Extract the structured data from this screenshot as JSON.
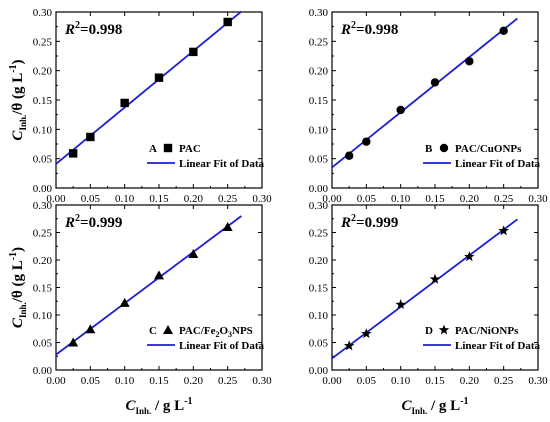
{
  "chart_data": [
    {
      "type": "scatter",
      "panel": "A",
      "r2_prefix": "R",
      "r2_sup": "2",
      "r2_value": "=0.998",
      "marker": "square",
      "legend": {
        "panel_label": "A",
        "series_name": "PAC",
        "fit_name": "Linear Fit of Data",
        "placement": "bottom-right"
      },
      "x": [
        0.025,
        0.05,
        0.1,
        0.15,
        0.2,
        0.25
      ],
      "y": [
        0.059,
        0.087,
        0.145,
        0.188,
        0.232,
        0.283
      ],
      "fit": {
        "x": [
          0.0,
          0.27
        ],
        "y": [
          0.041,
          0.301
        ]
      },
      "xlim": [
        0.0,
        0.3
      ],
      "ylim": [
        0.0,
        0.3
      ],
      "xticks": [
        "0.00",
        "0.05",
        "0.10",
        "0.15",
        "0.20",
        "0.25",
        "0.30"
      ],
      "yticks": [
        "0.00",
        "0.05",
        "0.10",
        "0.15",
        "0.20",
        "0.25",
        "0.30"
      ]
    },
    {
      "type": "scatter",
      "panel": "B",
      "r2_prefix": "R",
      "r2_sup": "2",
      "r2_value": "=0.998",
      "marker": "circle",
      "legend": {
        "panel_label": "B",
        "series_name": "PAC/CuONPs",
        "fit_name": "Linear Fit of Data",
        "placement": "bottom-right"
      },
      "x": [
        0.025,
        0.05,
        0.1,
        0.15,
        0.2,
        0.25
      ],
      "y": [
        0.055,
        0.079,
        0.133,
        0.18,
        0.216,
        0.268
      ],
      "fit": {
        "x": [
          0.0,
          0.27
        ],
        "y": [
          0.035,
          0.289
        ]
      },
      "xlim": [
        0.0,
        0.3
      ],
      "ylim": [
        0.0,
        0.3
      ],
      "xticks": [
        "0.00",
        "0.05",
        "0.10",
        "0.15",
        "0.20",
        "0.25",
        "0.30"
      ],
      "yticks": [
        "0.00",
        "0.05",
        "0.10",
        "0.15",
        "0.20",
        "0.25",
        "0.30"
      ]
    },
    {
      "type": "scatter",
      "panel": "C",
      "r2_prefix": "R",
      "r2_sup": "2",
      "r2_value": "=0.999",
      "marker": "triangle",
      "legend": {
        "panel_label": "C",
        "series_name_main": "PAC/Fe",
        "series_sub1": "2",
        "series_mid": "O",
        "series_sub2": "3",
        "series_end": "NPS",
        "fit_name": "Linear Fit of Data",
        "placement": "bottom-right"
      },
      "x": [
        0.025,
        0.05,
        0.1,
        0.15,
        0.2,
        0.25
      ],
      "y": [
        0.05,
        0.074,
        0.122,
        0.172,
        0.211,
        0.26
      ],
      "fit": {
        "x": [
          0.0,
          0.27
        ],
        "y": [
          0.028,
          0.28
        ]
      },
      "xlim": [
        0.0,
        0.3
      ],
      "ylim": [
        0.0,
        0.3
      ],
      "xticks": [
        "0.00",
        "0.05",
        "0.10",
        "0.15",
        "0.20",
        "0.25",
        "0.30"
      ],
      "yticks": [
        "0.00",
        "0.05",
        "0.10",
        "0.15",
        "0.20",
        "0.25",
        "0.30"
      ]
    },
    {
      "type": "scatter",
      "panel": "D",
      "r2_prefix": "R",
      "r2_sup": "2",
      "r2_value": "=0.999",
      "marker": "star",
      "legend": {
        "panel_label": "D",
        "series_name": "PAC/NiONPs",
        "fit_name": "Linear Fit of Data",
        "placement": "bottom-right"
      },
      "x": [
        0.025,
        0.05,
        0.1,
        0.15,
        0.2,
        0.25
      ],
      "y": [
        0.044,
        0.066,
        0.119,
        0.165,
        0.206,
        0.253
      ],
      "fit": {
        "x": [
          0.0,
          0.27
        ],
        "y": [
          0.021,
          0.274
        ]
      },
      "xlim": [
        0.0,
        0.3
      ],
      "ylim": [
        0.0,
        0.3
      ],
      "xticks": [
        "0.00",
        "0.05",
        "0.10",
        "0.15",
        "0.20",
        "0.25",
        "0.30"
      ],
      "yticks": [
        "0.00",
        "0.05",
        "0.10",
        "0.15",
        "0.20",
        "0.25",
        "0.30"
      ]
    }
  ],
  "axes": {
    "ylabel_main": "C",
    "ylabel_sub": "Inh.",
    "ylabel_rest": "/θ (g L",
    "ylabel_sup": "-1",
    "ylabel_close": ")",
    "xlabel_main": "C",
    "xlabel_sub": "Inh.",
    "xlabel_rest": "/ g L",
    "xlabel_sup": "-1"
  },
  "colors": {
    "fit_line": "#1f1fd0",
    "marker": "#000000",
    "axis": "#000000"
  }
}
